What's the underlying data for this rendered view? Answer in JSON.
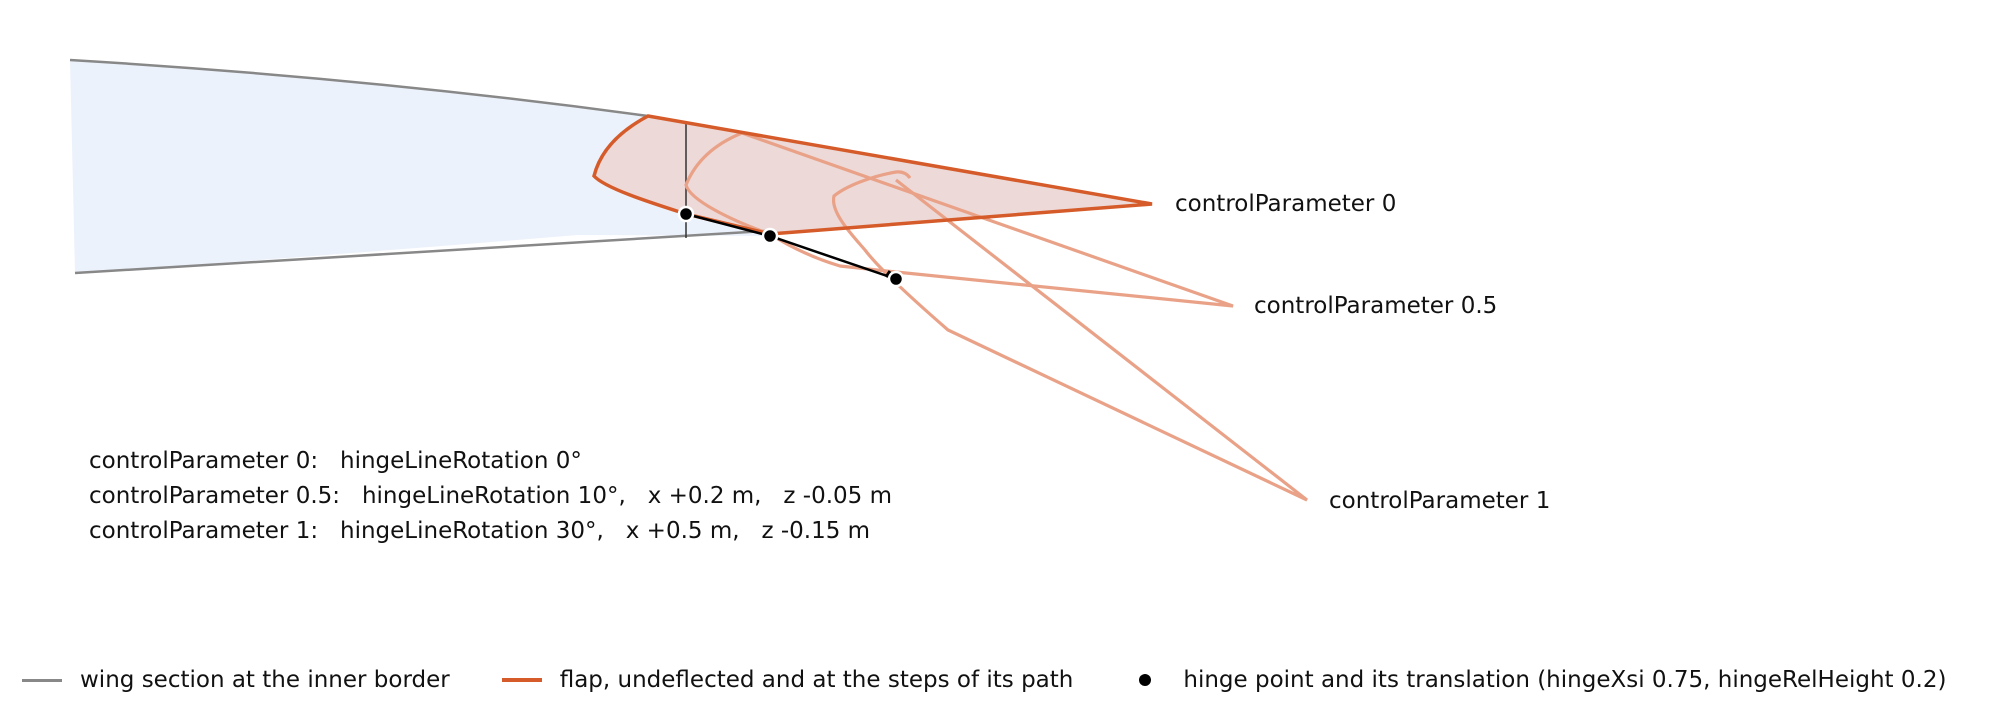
{
  "colors": {
    "wing": "#888888",
    "wing_fill": "#ecf2fb",
    "flap": "#d55c2a",
    "flap_light": "#e9a287",
    "flap_fill": "#edd9d8",
    "hinge": "#000000"
  },
  "labels": {
    "cp0": "controlParameter 0",
    "cp05": "controlParameter 0.5",
    "cp1": "controlParameter 1"
  },
  "info_lines": [
    "controlParameter 0:   hingeLineRotation 0°",
    "controlParameter 0.5:   hingeLineRotation 10°,   x +0.2 m,   z -0.05 m",
    "controlParameter 1:   hingeLineRotation 30°,   x +0.5 m,   z -0.15 m"
  ],
  "legend": {
    "wing": "wing section at the inner border",
    "flap": "flap, undeflected and at the steps of its path",
    "hinge": "hinge point and its translation (hingeXsi 0.75, hingeRelHeight 0.2)"
  }
}
